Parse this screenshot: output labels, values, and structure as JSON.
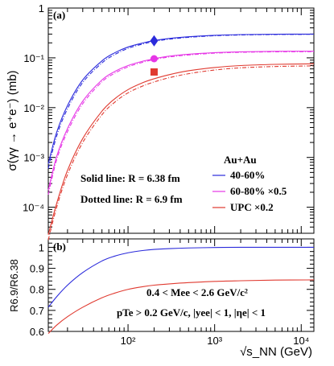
{
  "chart_data": [
    {
      "panel_label": "(a)",
      "type": "line",
      "x_scale": "log",
      "y_scale": "log",
      "xlim": [
        12,
        14000
      ],
      "ylim": [
        3e-05,
        1
      ],
      "ylabel": "σ(γγ → e⁺e⁻) (mb)",
      "ytick_labels": [
        "10⁻⁴",
        "10⁻³",
        "10⁻²",
        "10⁻¹",
        "1"
      ],
      "legend_title": "Au+Au",
      "legend_position": "right",
      "annotations": [
        "Solid line: R = 6.38 fm",
        "Dotted line: R = 6.9 fm"
      ],
      "x": [
        12,
        15,
        20,
        30,
        50,
        70,
        100,
        150,
        200,
        300,
        500,
        1000,
        2000,
        5000,
        14000
      ],
      "series": [
        {
          "name": "40-60%",
          "color": "#2a2adb",
          "solid": [
            0.00075,
            0.0032,
            0.011,
            0.036,
            0.087,
            0.126,
            0.165,
            0.2,
            0.222,
            0.245,
            0.265,
            0.283,
            0.293,
            0.298,
            0.3
          ],
          "dotted": [
            0.0006,
            0.0027,
            0.0095,
            0.032,
            0.079,
            0.116,
            0.155,
            0.191,
            0.213,
            0.237,
            0.258,
            0.278,
            0.288,
            0.294,
            0.296
          ],
          "marker": {
            "shape": "diamond",
            "x": 200,
            "y": 0.22
          }
        },
        {
          "name": "60-80% ×0.5",
          "color": "#e636e6",
          "solid": [
            0.00022,
            0.00105,
            0.0038,
            0.0135,
            0.036,
            0.053,
            0.07,
            0.086,
            0.096,
            0.108,
            0.118,
            0.127,
            0.132,
            0.135,
            0.136
          ],
          "dotted": [
            0.00018,
            0.0009,
            0.0033,
            0.012,
            0.033,
            0.049,
            0.066,
            0.082,
            0.092,
            0.104,
            0.114,
            0.124,
            0.129,
            0.132,
            0.133
          ],
          "marker": {
            "shape": "circle",
            "x": 200,
            "y": 0.096
          }
        },
        {
          "name": "UPC ×0.2",
          "color": "#e03a30",
          "solid": [
            2.8e-05,
            0.00012,
            0.00055,
            0.0024,
            0.0085,
            0.015,
            0.023,
            0.032,
            0.038,
            0.046,
            0.055,
            0.064,
            0.07,
            0.074,
            0.076
          ],
          "dotted": [
            2.2e-05,
            0.0001,
            0.00045,
            0.002,
            0.0072,
            0.0128,
            0.0198,
            0.0275,
            0.0328,
            0.04,
            0.048,
            0.057,
            0.063,
            0.067,
            0.069
          ],
          "marker": {
            "shape": "square",
            "x": 200,
            "y": 0.052
          }
        }
      ]
    },
    {
      "panel_label": "(b)",
      "type": "line",
      "x_scale": "log",
      "xlim": [
        12,
        14000
      ],
      "ylim": [
        0.6,
        1.04
      ],
      "xlabel": "√s_NN (GeV)",
      "ylabel": "R6.9/R6.38",
      "xtick_labels": [
        "10²",
        "10³",
        "10⁴"
      ],
      "ytick_labels": [
        "0.6",
        "0.7",
        "0.8",
        "0.9",
        "1"
      ],
      "annotations": [
        "0.4 < Mee < 2.6 GeV/c²",
        "pTe > 0.2 GeV/c,  |yee| < 1,  |ηe| < 1"
      ],
      "x": [
        12,
        15,
        20,
        30,
        50,
        70,
        100,
        150,
        200,
        300,
        500,
        1000,
        2000,
        5000,
        14000
      ],
      "series": [
        {
          "name": "40-60%",
          "color": "#2a2adb",
          "values": [
            0.715,
            0.765,
            0.82,
            0.88,
            0.935,
            0.958,
            0.974,
            0.985,
            0.99,
            0.994,
            0.997,
            0.999,
            1.0,
            1.0,
            1.0
          ]
        },
        {
          "name": "UPC ×0.2",
          "color": "#e03a30",
          "values": [
            0.59,
            0.63,
            0.67,
            0.715,
            0.76,
            0.782,
            0.8,
            0.813,
            0.82,
            0.826,
            0.832,
            0.838,
            0.841,
            0.844,
            0.845
          ]
        }
      ]
    }
  ]
}
